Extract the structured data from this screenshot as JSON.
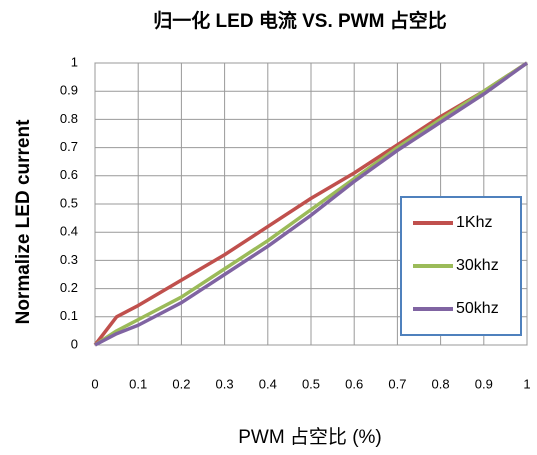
{
  "chart_data": {
    "type": "line",
    "title": "归一化 LED 电流  VS. PWM  占空比",
    "x_label": "PWM  占空比  (%)",
    "y_label": "Normalize LED current",
    "x": [
      0,
      0.05,
      0.1,
      0.2,
      0.3,
      0.4,
      0.5,
      0.6,
      0.7,
      0.8,
      0.9,
      1
    ],
    "series": [
      {
        "name": "1Khz",
        "color": "#c0504d",
        "values": [
          0,
          0.1,
          0.14,
          0.23,
          0.32,
          0.42,
          0.52,
          0.61,
          0.71,
          0.81,
          0.9,
          1
        ]
      },
      {
        "name": "30khz",
        "color": "#9bbb59",
        "values": [
          0,
          0.05,
          0.09,
          0.17,
          0.27,
          0.37,
          0.48,
          0.59,
          0.7,
          0.8,
          0.9,
          1
        ]
      },
      {
        "name": "50khz",
        "color": "#8064a2",
        "values": [
          0,
          0.04,
          0.07,
          0.15,
          0.25,
          0.35,
          0.46,
          0.58,
          0.69,
          0.79,
          0.89,
          1
        ]
      }
    ],
    "xlim": [
      0,
      1
    ],
    "ylim": [
      0,
      1
    ],
    "xticks": [
      0,
      0.1,
      0.2,
      0.3,
      0.4,
      0.5,
      0.6,
      0.7,
      0.8,
      0.9,
      1
    ],
    "yticks": [
      0,
      0.1,
      0.2,
      0.3,
      0.4,
      0.5,
      0.6,
      0.7,
      0.8,
      0.9,
      1
    ],
    "grid": true,
    "legend": "lower right"
  }
}
